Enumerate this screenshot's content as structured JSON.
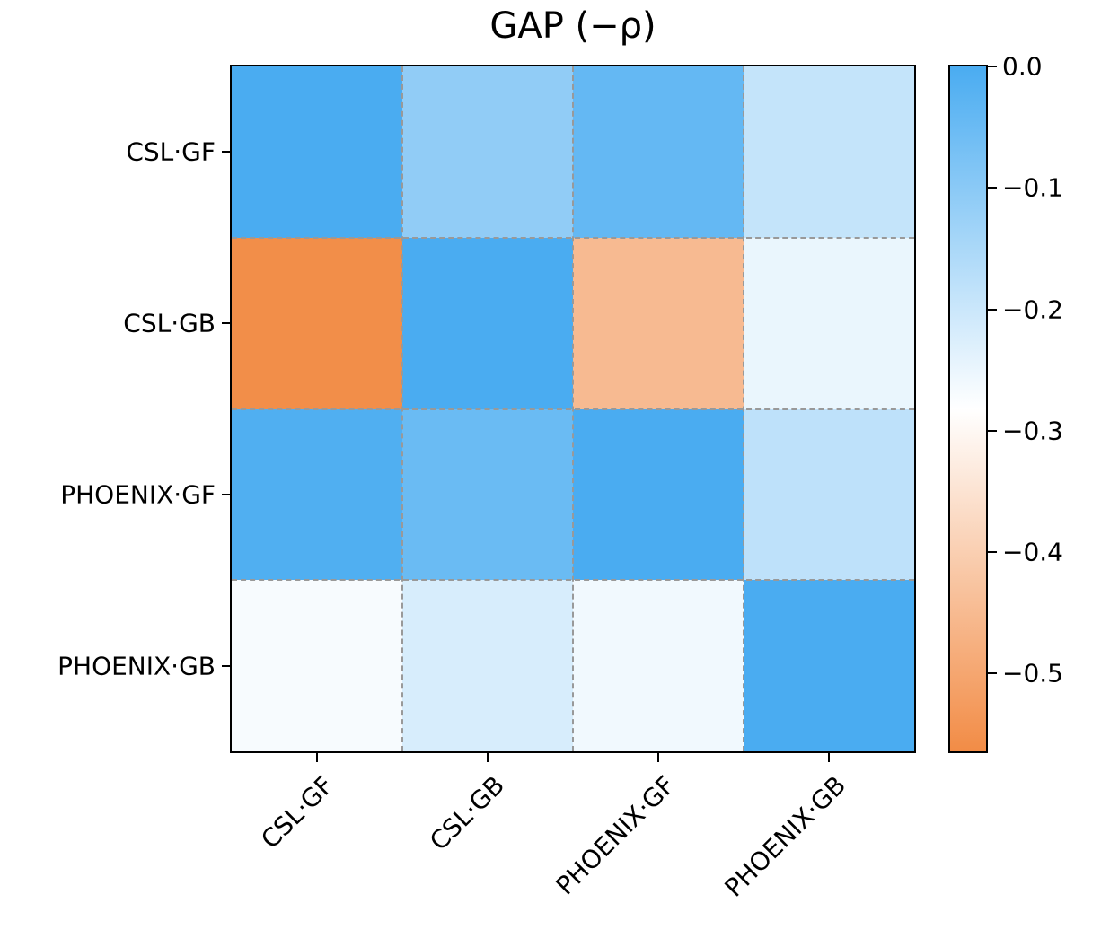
{
  "chart_data": {
    "type": "heatmap",
    "title": "GAP (−ρ)",
    "row_labels": [
      "CSL·GF",
      "CSL·GB",
      "PHOENIX·GF",
      "PHOENIX·GB"
    ],
    "col_labels": [
      "CSL·GF",
      "CSL·GB",
      "PHOENIX·GF",
      "PHOENIX·GB"
    ],
    "values": [
      [
        0.0,
        -0.11,
        -0.04,
        -0.19
      ],
      [
        -0.56,
        0.0,
        -0.45,
        -0.25
      ],
      [
        -0.01,
        -0.05,
        0.0,
        -0.18
      ],
      [
        -0.27,
        -0.22,
        -0.26,
        0.0
      ]
    ],
    "vmax": 0.0,
    "vmin": -0.564,
    "colorbar_ticks": [
      {
        "label": "0.0",
        "value": 0.0
      },
      {
        "label": "−0.1",
        "value": -0.1
      },
      {
        "label": "−0.2",
        "value": -0.2
      },
      {
        "label": "−0.3",
        "value": -0.3
      },
      {
        "label": "−0.4",
        "value": -0.4
      },
      {
        "label": "−0.5",
        "value": -0.5
      }
    ],
    "colors": {
      "max_color": "#4AACF1",
      "mid_color": "#FFFFFF",
      "min_color": "#F28C46",
      "gridline_color": "#999999",
      "spine_color": "#000000"
    },
    "layout": {
      "grid": "dashed",
      "legend_position": "right-colorbar",
      "x_label_rotation_deg": 45
    }
  }
}
